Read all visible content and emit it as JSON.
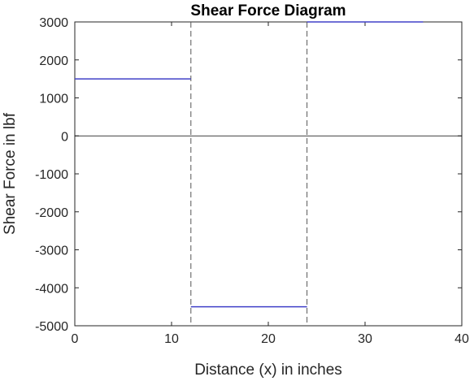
{
  "chart_data": {
    "type": "line",
    "title": "Shear Force Diagram",
    "xlabel": "Distance (x) in inches",
    "ylabel": "Shear Force in lbf",
    "xlim": [
      0,
      40
    ],
    "ylim": [
      -5000,
      3000
    ],
    "xticks": [
      0,
      10,
      20,
      30,
      40
    ],
    "yticks": [
      3000,
      2000,
      1000,
      0,
      -1000,
      -2000,
      -3000,
      -4000,
      -5000
    ],
    "grid": false,
    "series": [
      {
        "color": "#4040c8",
        "segments": [
          {
            "x": [
              0,
              12
            ],
            "y": [
              1500,
              1500
            ]
          },
          {
            "x": [
              12,
              24
            ],
            "y": [
              -4500,
              -4500
            ]
          },
          {
            "x": [
              24,
              36
            ],
            "y": [
              3000,
              3000
            ]
          }
        ]
      }
    ],
    "zero_line": {
      "y": 0,
      "color": "#000000"
    },
    "vertical_dashed_lines": [
      12,
      24
    ]
  }
}
